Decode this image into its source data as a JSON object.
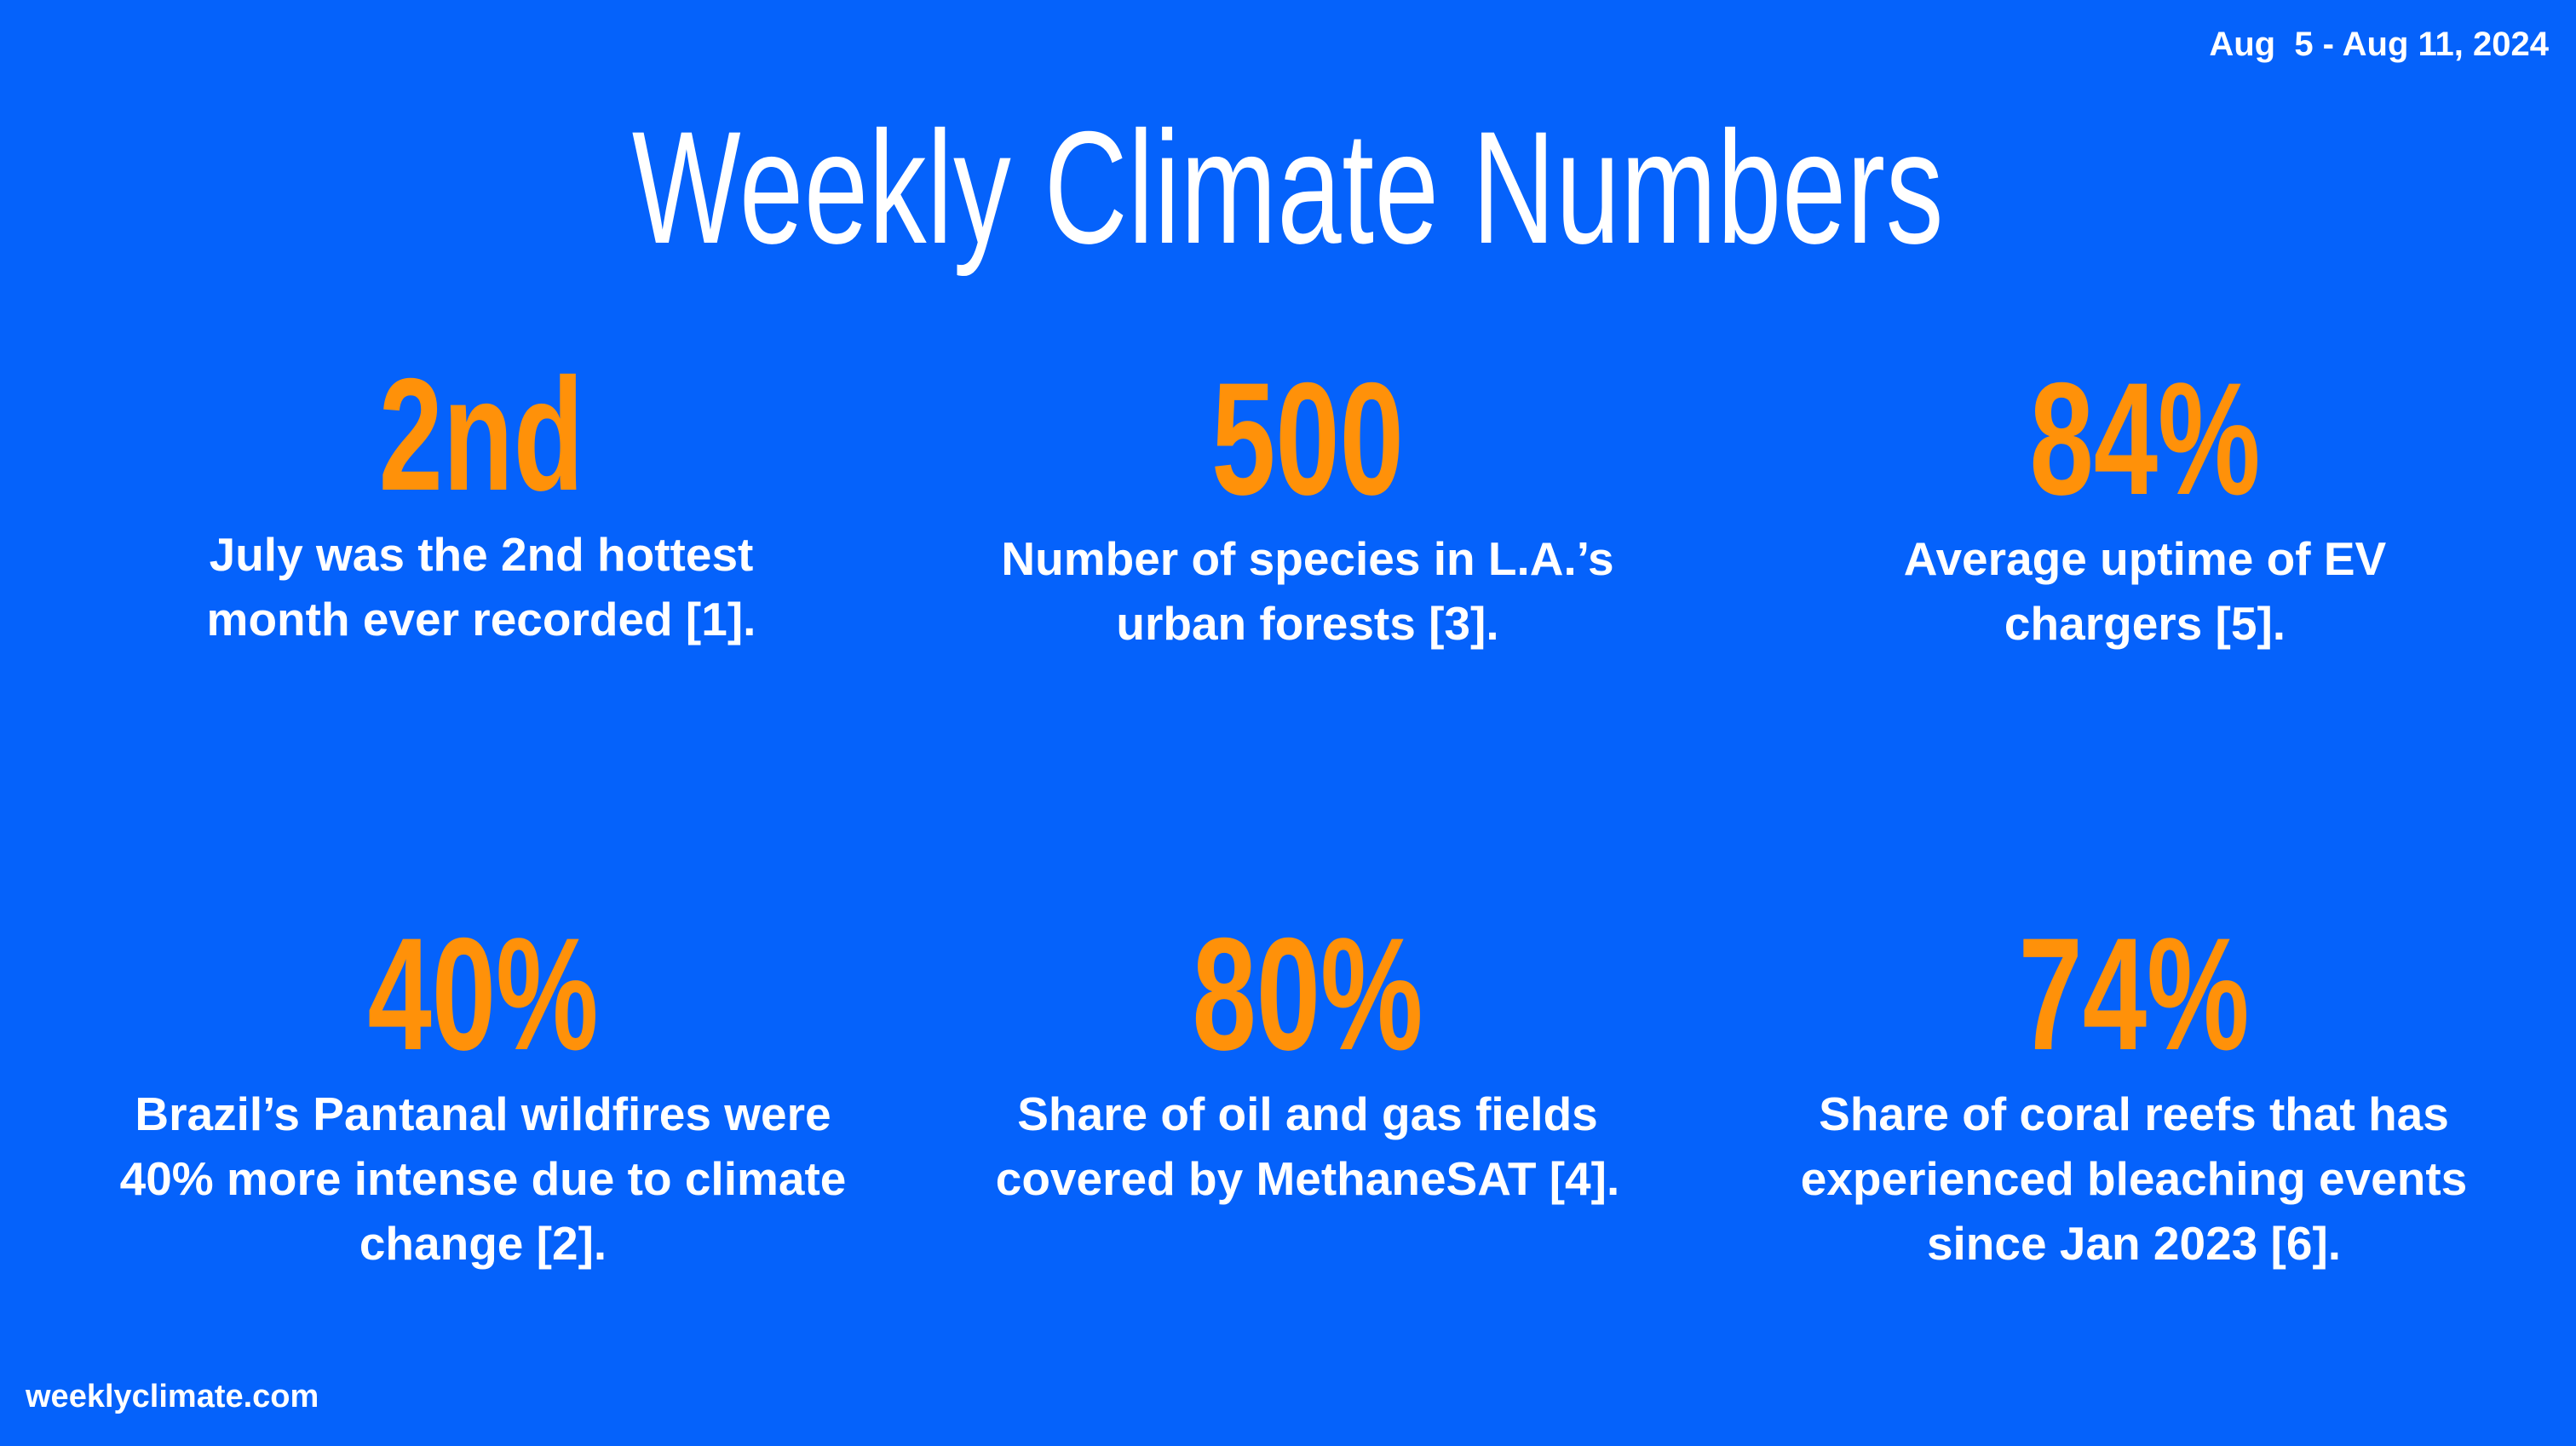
{
  "header": {
    "date_range": "Aug  5 - Aug 11, 2024",
    "title": "Weekly Climate Numbers"
  },
  "stats": [
    {
      "value": "2nd",
      "description": "July was the 2nd hottest month ever recorded [1]."
    },
    {
      "value": "500",
      "description": "Number of species in L.A.’s urban forests [3]."
    },
    {
      "value": "84%",
      "description": "Average uptime of EV chargers [5]."
    },
    {
      "value": "40%",
      "description": "Brazil’s Pantanal wildfires were 40% more intense due to climate change [2]."
    },
    {
      "value": "80%",
      "description": "Share of oil and gas fields covered by MethaneSAT [4]."
    },
    {
      "value": "74%",
      "description": "Share of coral reefs that has experienced bleaching events since Jan 2023 [6]."
    }
  ],
  "footer": {
    "site": "weeklyclimate.com"
  },
  "colors": {
    "background": "#0562fb",
    "accent": "#ff9109",
    "text": "#ffffff"
  }
}
